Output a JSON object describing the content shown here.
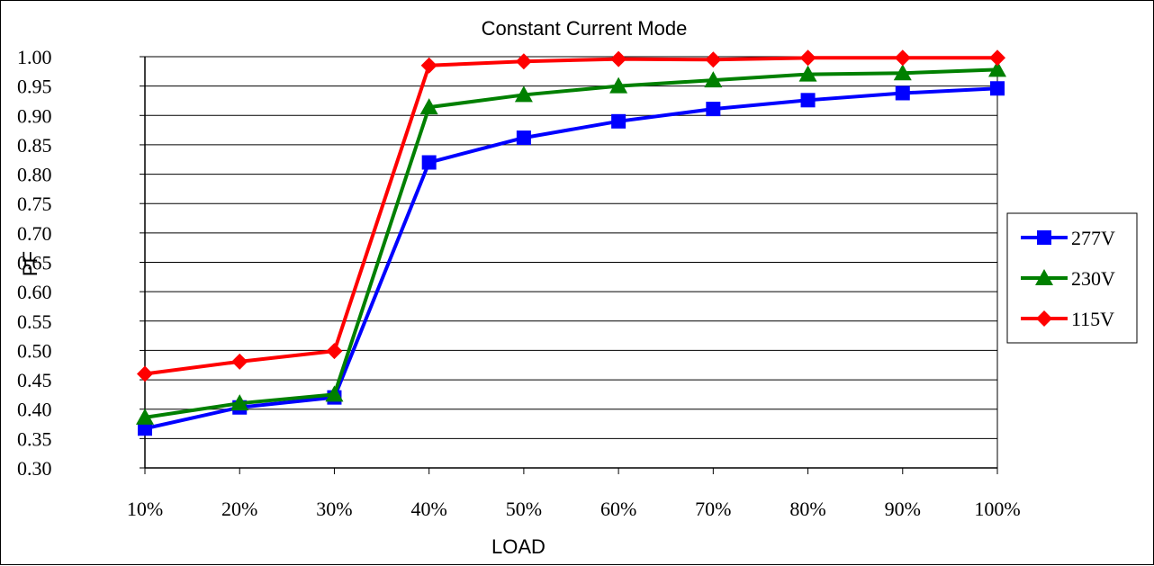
{
  "chart_data": {
    "type": "line",
    "title": "Constant Current Mode",
    "xlabel": "LOAD",
    "ylabel": "PF",
    "categories": [
      "10%",
      "20%",
      "30%",
      "40%",
      "50%",
      "60%",
      "70%",
      "80%",
      "90%",
      "100%"
    ],
    "ylim": [
      0.3,
      1.0
    ],
    "yticks": [
      "0.30",
      "0.35",
      "0.40",
      "0.45",
      "0.50",
      "0.55",
      "0.60",
      "0.65",
      "0.70",
      "0.75",
      "0.80",
      "0.85",
      "0.90",
      "0.95",
      "1.00"
    ],
    "grid": true,
    "legend_position": "right",
    "series": [
      {
        "name": "277V",
        "color": "#0000ff",
        "marker": "square",
        "values": [
          0.367,
          0.403,
          0.42,
          0.82,
          0.862,
          0.89,
          0.911,
          0.926,
          0.938,
          0.946
        ]
      },
      {
        "name": "230V",
        "color": "#008000",
        "marker": "triangle",
        "values": [
          0.386,
          0.41,
          0.425,
          0.914,
          0.935,
          0.95,
          0.96,
          0.97,
          0.972,
          0.978
        ]
      },
      {
        "name": "115V",
        "color": "#ff0000",
        "marker": "diamond",
        "values": [
          0.46,
          0.481,
          0.499,
          0.985,
          0.992,
          0.996,
          0.995,
          0.998,
          0.998,
          0.998
        ]
      }
    ]
  }
}
